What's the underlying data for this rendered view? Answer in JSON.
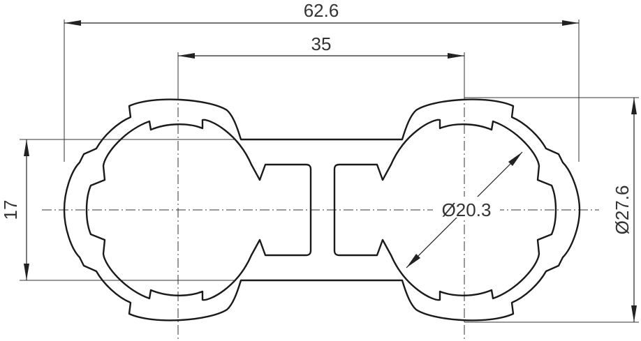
{
  "dimensions": {
    "overall_width": "62.6",
    "center_distance": "35",
    "height": "17",
    "inner_diameter": "Ø20.3",
    "outer_diameter": "Ø27.6"
  }
}
